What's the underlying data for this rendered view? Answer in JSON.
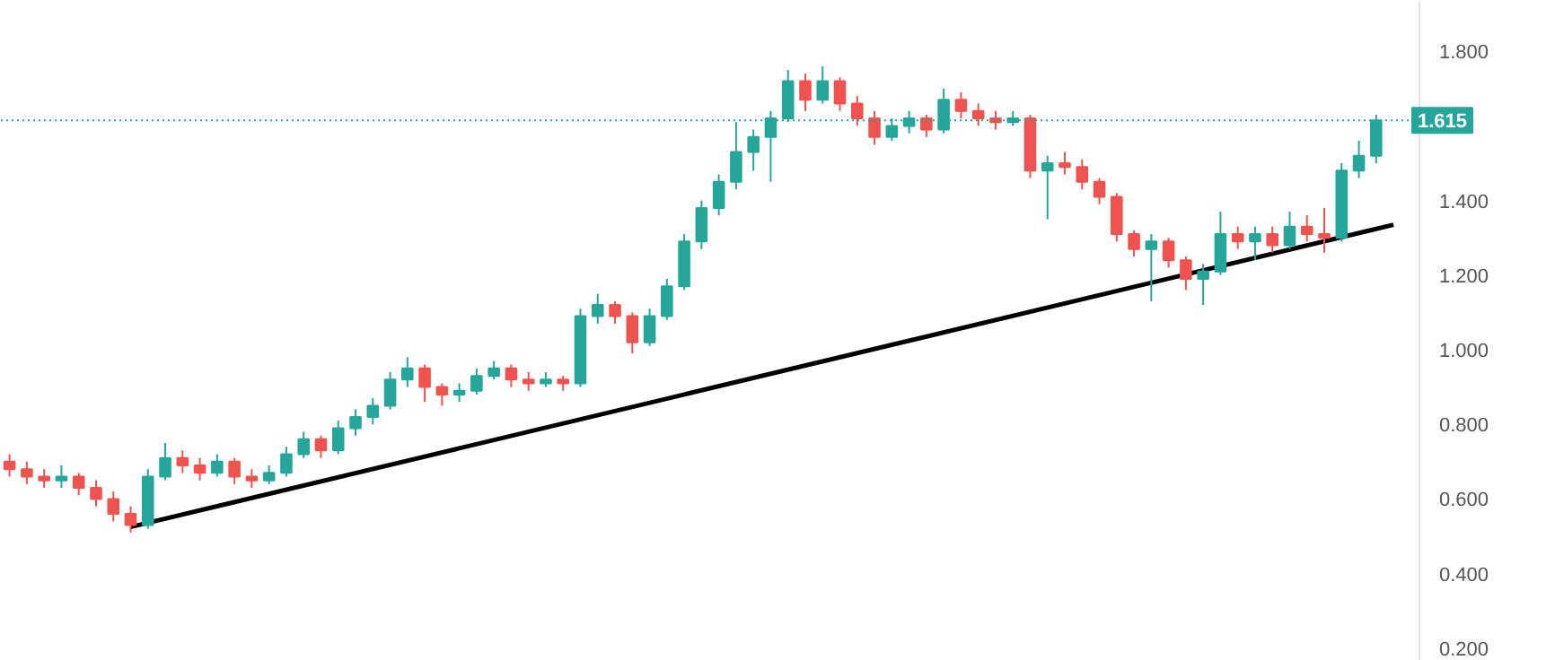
{
  "chart_data": {
    "type": "candlestick",
    "categories": [
      null,
      null,
      null,
      null,
      null,
      null,
      null,
      null,
      null,
      null,
      null,
      null,
      null,
      null,
      null,
      null,
      null,
      null,
      null,
      null,
      null,
      null,
      null,
      null,
      null,
      null,
      null,
      null,
      null,
      null,
      null,
      null,
      null,
      null,
      null,
      null,
      null,
      null,
      null,
      null,
      null,
      null,
      null,
      null,
      null,
      null,
      null,
      null,
      null,
      null,
      null,
      null,
      null,
      null,
      null,
      null,
      null,
      null,
      null,
      null,
      null,
      null,
      null,
      null,
      null,
      null,
      null,
      null,
      null,
      null,
      null,
      null,
      null,
      null,
      null,
      null,
      null,
      null,
      null,
      null,
      null,
      null
    ],
    "ohlc": [
      [
        0.7,
        0.72,
        0.66,
        0.68
      ],
      [
        0.68,
        0.7,
        0.64,
        0.66
      ],
      [
        0.66,
        0.68,
        0.63,
        0.65
      ],
      [
        0.65,
        0.69,
        0.63,
        0.66
      ],
      [
        0.66,
        0.67,
        0.61,
        0.63
      ],
      [
        0.63,
        0.65,
        0.58,
        0.6
      ],
      [
        0.6,
        0.62,
        0.54,
        0.56
      ],
      [
        0.56,
        0.58,
        0.51,
        0.53
      ],
      [
        0.53,
        0.68,
        0.52,
        0.66
      ],
      [
        0.66,
        0.75,
        0.65,
        0.71
      ],
      [
        0.71,
        0.73,
        0.67,
        0.69
      ],
      [
        0.69,
        0.71,
        0.65,
        0.67
      ],
      [
        0.67,
        0.72,
        0.66,
        0.7
      ],
      [
        0.7,
        0.71,
        0.64,
        0.66
      ],
      [
        0.66,
        0.68,
        0.63,
        0.65
      ],
      [
        0.65,
        0.69,
        0.64,
        0.67
      ],
      [
        0.67,
        0.74,
        0.66,
        0.72
      ],
      [
        0.72,
        0.78,
        0.71,
        0.76
      ],
      [
        0.76,
        0.77,
        0.71,
        0.73
      ],
      [
        0.73,
        0.81,
        0.72,
        0.79
      ],
      [
        0.79,
        0.84,
        0.77,
        0.82
      ],
      [
        0.82,
        0.87,
        0.8,
        0.85
      ],
      [
        0.85,
        0.94,
        0.84,
        0.92
      ],
      [
        0.92,
        0.98,
        0.9,
        0.95
      ],
      [
        0.95,
        0.96,
        0.86,
        0.9
      ],
      [
        0.9,
        0.91,
        0.85,
        0.88
      ],
      [
        0.88,
        0.91,
        0.86,
        0.89
      ],
      [
        0.89,
        0.95,
        0.88,
        0.93
      ],
      [
        0.93,
        0.97,
        0.92,
        0.95
      ],
      [
        0.95,
        0.96,
        0.9,
        0.92
      ],
      [
        0.92,
        0.94,
        0.89,
        0.91
      ],
      [
        0.91,
        0.94,
        0.9,
        0.92
      ],
      [
        0.92,
        0.93,
        0.89,
        0.91
      ],
      [
        0.91,
        1.11,
        0.9,
        1.09
      ],
      [
        1.09,
        1.15,
        1.07,
        1.12
      ],
      [
        1.12,
        1.13,
        1.07,
        1.09
      ],
      [
        1.09,
        1.1,
        0.99,
        1.02
      ],
      [
        1.02,
        1.11,
        1.01,
        1.09
      ],
      [
        1.09,
        1.19,
        1.08,
        1.17
      ],
      [
        1.17,
        1.31,
        1.16,
        1.29
      ],
      [
        1.29,
        1.4,
        1.27,
        1.38
      ],
      [
        1.38,
        1.47,
        1.36,
        1.45
      ],
      [
        1.45,
        1.61,
        1.43,
        1.53
      ],
      [
        1.53,
        1.59,
        1.48,
        1.57
      ],
      [
        1.57,
        1.64,
        1.45,
        1.62
      ],
      [
        1.62,
        1.75,
        1.61,
        1.72
      ],
      [
        1.72,
        1.74,
        1.64,
        1.67
      ],
      [
        1.67,
        1.76,
        1.66,
        1.72
      ],
      [
        1.72,
        1.73,
        1.64,
        1.66
      ],
      [
        1.66,
        1.68,
        1.6,
        1.62
      ],
      [
        1.62,
        1.64,
        1.55,
        1.57
      ],
      [
        1.57,
        1.62,
        1.56,
        1.6
      ],
      [
        1.6,
        1.64,
        1.58,
        1.62
      ],
      [
        1.62,
        1.63,
        1.57,
        1.59
      ],
      [
        1.59,
        1.7,
        1.58,
        1.67
      ],
      [
        1.67,
        1.69,
        1.62,
        1.64
      ],
      [
        1.64,
        1.66,
        1.6,
        1.62
      ],
      [
        1.62,
        1.64,
        1.59,
        1.61
      ],
      [
        1.61,
        1.64,
        1.6,
        1.62
      ],
      [
        1.62,
        1.63,
        1.46,
        1.48
      ],
      [
        1.48,
        1.52,
        1.35,
        1.5
      ],
      [
        1.5,
        1.53,
        1.47,
        1.49
      ],
      [
        1.49,
        1.51,
        1.43,
        1.45
      ],
      [
        1.45,
        1.46,
        1.39,
        1.41
      ],
      [
        1.41,
        1.42,
        1.29,
        1.31
      ],
      [
        1.31,
        1.32,
        1.25,
        1.27
      ],
      [
        1.27,
        1.31,
        1.13,
        1.29
      ],
      [
        1.29,
        1.3,
        1.22,
        1.24
      ],
      [
        1.24,
        1.25,
        1.16,
        1.19
      ],
      [
        1.19,
        1.23,
        1.12,
        1.21
      ],
      [
        1.21,
        1.37,
        1.2,
        1.31
      ],
      [
        1.31,
        1.33,
        1.27,
        1.29
      ],
      [
        1.29,
        1.33,
        1.24,
        1.31
      ],
      [
        1.31,
        1.33,
        1.26,
        1.28
      ],
      [
        1.28,
        1.37,
        1.27,
        1.33
      ],
      [
        1.33,
        1.36,
        1.29,
        1.31
      ],
      [
        1.31,
        1.38,
        1.26,
        1.3
      ],
      [
        1.3,
        1.5,
        1.29,
        1.48
      ],
      [
        1.48,
        1.56,
        1.46,
        1.52
      ],
      [
        1.52,
        1.63,
        1.5,
        1.615
      ],
      null,
      null
    ],
    "colors": [
      "#ef5350",
      "#ef5350",
      "#ef5350",
      "#26a69a",
      "#ef5350",
      "#ef5350",
      "#ef5350",
      "#ef5350",
      "#26a69a",
      "#26a69a",
      "#ef5350",
      "#ef5350",
      "#26a69a",
      "#ef5350",
      "#ef5350",
      "#26a69a",
      "#26a69a",
      "#26a69a",
      "#ef5350",
      "#26a69a",
      "#26a69a",
      "#26a69a",
      "#26a69a",
      "#26a69a",
      "#ef5350",
      "#ef5350",
      "#26a69a",
      "#26a69a",
      "#26a69a",
      "#ef5350",
      "#ef5350",
      "#26a69a",
      "#ef5350",
      "#26a69a",
      "#26a69a",
      "#ef5350",
      "#ef5350",
      "#26a69a",
      "#26a69a",
      "#26a69a",
      "#26a69a",
      "#26a69a",
      "#26a69a",
      "#26a69a",
      "#26a69a",
      "#26a69a",
      "#ef5350",
      "#26a69a",
      "#ef5350",
      "#ef5350",
      "#ef5350",
      "#26a69a",
      "#26a69a",
      "#ef5350",
      "#26a69a",
      "#ef5350",
      "#ef5350",
      "#ef5350",
      "#26a69a",
      "#ef5350",
      "#26a69a",
      "#ef5350",
      "#ef5350",
      "#ef5350",
      "#ef5350",
      "#ef5350",
      "#26a69a",
      "#ef5350",
      "#ef5350",
      "#26a69a",
      "#26a69a",
      "#ef5350",
      "#26a69a",
      "#ef5350",
      "#26a69a",
      "#ef5350",
      "#ef5350",
      "#26a69a",
      "#26a69a",
      "#26a69a",
      null,
      null
    ],
    "series": [
      {
        "type": "line",
        "color": "#000000",
        "values": [
          null,
          null,
          null,
          null,
          null,
          null,
          null,
          0.525,
          null,
          null,
          null,
          null,
          null,
          null,
          null,
          null,
          null,
          null,
          null,
          null,
          null,
          null,
          null,
          null,
          null,
          null,
          null,
          null,
          null,
          null,
          null,
          null,
          null,
          null,
          null,
          null,
          null,
          null,
          null,
          null,
          null,
          null,
          null,
          null,
          null,
          null,
          null,
          null,
          null,
          null,
          null,
          null,
          null,
          null,
          null,
          null,
          null,
          null,
          null,
          null,
          null,
          null,
          null,
          null,
          null,
          null,
          null,
          null,
          null,
          null,
          null,
          null,
          null,
          null,
          null,
          null,
          null,
          null,
          null,
          null,
          1.335,
          null
        ]
      }
    ],
    "ylim": [
      0.166,
      1.935
    ],
    "yticks": [
      {
        "value": 0.2,
        "label": "0.200"
      },
      {
        "value": 0.4,
        "label": "0.400"
      },
      {
        "value": 0.6,
        "label": "0.600"
      },
      {
        "value": 0.8,
        "label": "0.800"
      },
      {
        "value": 1.0,
        "label": "1.000"
      },
      {
        "value": 1.2,
        "label": "1.200"
      },
      {
        "value": 1.4,
        "label": "1.400"
      },
      {
        "value": 1.8,
        "label": "1.800"
      }
    ],
    "ref_lines": [
      {
        "axis": "y",
        "value": 1.615,
        "label": "1.615",
        "color": "#26a69a",
        "line_style": "dotted"
      }
    ],
    "tick_labels": "y",
    "grid": false
  }
}
